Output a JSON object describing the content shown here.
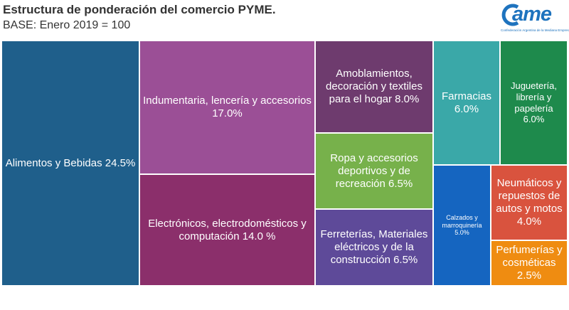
{
  "header": {
    "title": "Estructura de ponderación del comercio PYME.",
    "subtitle": "BASE: Enero 2019 = 100"
  },
  "logo": {
    "word": "ame",
    "tagline": "Confederación Argentina de la Mediana Empresa"
  },
  "chart_data": {
    "type": "treemap",
    "title": "Estructura de ponderación del comercio PYME.",
    "subtitle": "BASE: Enero 2019 = 100",
    "items": [
      {
        "label": "Alimentos y Bebidas 24.5%",
        "value": 24.5,
        "color": "#1f5f8b"
      },
      {
        "label": "Indumentaria, lencería y accesorios 17.0%",
        "value": 17.0,
        "color": "#9b4f96"
      },
      {
        "label": "Electrónicos, electrodomésticos y computación 14.0 %",
        "value": 14.0,
        "color": "#8b2f6b"
      },
      {
        "label": "Amoblamientos, decoración y textiles para el hogar 8.0%",
        "value": 8.0,
        "color": "#6e3b6e"
      },
      {
        "label": "Ropa y accesorios deportivos y de recreación 6.5%",
        "value": 6.5,
        "color": "#77b14b"
      },
      {
        "label": "Ferreterías, Materiales eléctricos y de la construcción 6.5%",
        "value": 6.5,
        "color": "#5e4a99"
      },
      {
        "label": "Farmacias 6.0%",
        "value": 6.0,
        "color": "#3aa8a8"
      },
      {
        "label": "Juguetería, librería y papelería 6.0%",
        "value": 6.0,
        "color": "#1e8a4c"
      },
      {
        "label": "Calzados y marroquinería 5.0%",
        "value": 5.0,
        "color": "#1565c0"
      },
      {
        "label": "Neumáticos y repuestos de autos y motos 4.0%",
        "value": 4.0,
        "color": "#d9533e"
      },
      {
        "label": "Perfumerías y cosméticas 2.5%",
        "value": 2.5,
        "color": "#ef8c11"
      }
    ]
  }
}
